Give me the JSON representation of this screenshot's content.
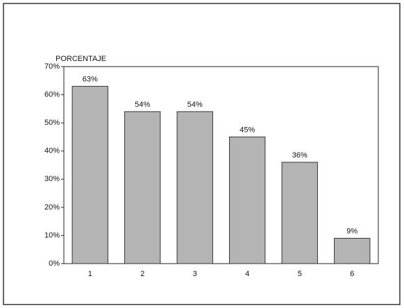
{
  "chart_data": {
    "type": "bar",
    "y_axis_label": "PORCENTAJE",
    "categories": [
      "1",
      "2",
      "3",
      "4",
      "5",
      "6"
    ],
    "values": [
      63,
      54,
      54,
      45,
      36,
      9
    ],
    "value_labels": [
      "63%",
      "54%",
      "54%",
      "45%",
      "36%",
      "9%"
    ],
    "color": "#b4b4b4",
    "ylim": [
      0,
      70
    ],
    "yticks": [
      {
        "value": 0,
        "label": "0%"
      },
      {
        "value": 10,
        "label": "10%"
      },
      {
        "value": 20,
        "label": "20%"
      },
      {
        "value": 30,
        "label": "30%"
      },
      {
        "value": 40,
        "label": "40%"
      },
      {
        "value": 50,
        "label": "50%"
      },
      {
        "value": 60,
        "label": "60%"
      },
      {
        "value": 70,
        "label": "70%"
      }
    ],
    "grid": false
  }
}
